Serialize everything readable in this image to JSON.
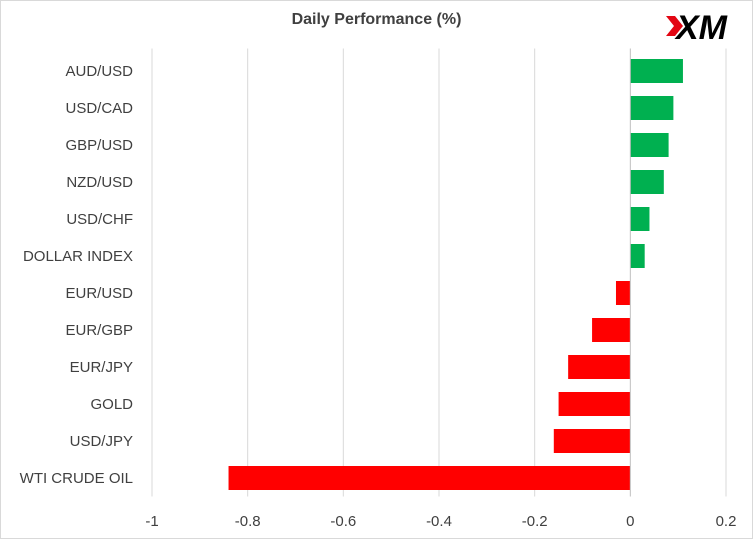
{
  "chart_data": {
    "type": "bar",
    "orientation": "horizontal",
    "title": "Daily Performance (%)",
    "xlabel": "",
    "ylabel": "",
    "categories": [
      "AUD/USD",
      "USD/CAD",
      "GBP/USD",
      "NZD/USD",
      "USD/CHF",
      "DOLLAR INDEX",
      "EUR/USD",
      "EUR/GBP",
      "EUR/JPY",
      "GOLD",
      "USD/JPY",
      "WTI CRUDE OIL"
    ],
    "values": [
      0.11,
      0.09,
      0.08,
      0.07,
      0.04,
      0.03,
      -0.03,
      -0.08,
      -0.13,
      -0.15,
      -0.16,
      -0.84
    ],
    "xlim": [
      -1,
      0.2
    ],
    "xticks": [
      -1,
      -0.8,
      -0.6,
      -0.4,
      -0.2,
      0,
      0.2
    ],
    "grid": "vertical",
    "legend": "none",
    "colors": {
      "positive": "#00b050",
      "negative": "#ff0000",
      "grid": "#d9d9d9",
      "text": "#404040"
    }
  },
  "logo": {
    "text": "XM",
    "colors": {
      "accent": "#e30613",
      "dark": "#000000"
    }
  }
}
